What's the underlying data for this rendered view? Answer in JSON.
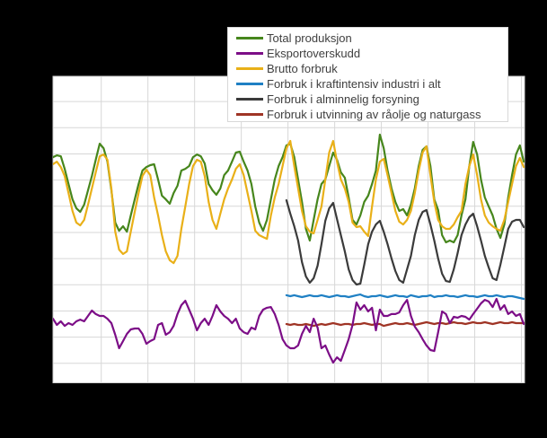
{
  "page": {
    "background": "#000000"
  },
  "plot": {
    "background": "#ffffff",
    "grid_color": "#d7d7d7",
    "border_color": "#d0d0d0"
  },
  "legend": {
    "background": "#ffffff",
    "border_color": "#d8d8d8",
    "text_color": "#3f3f3f"
  },
  "chart_data": {
    "type": "line",
    "title": "",
    "xlabel": "",
    "ylabel": "",
    "legend_position": "top",
    "grid": true,
    "x_axis": {
      "unit": "month-index",
      "xlim": [
        0,
        121.2
      ],
      "gridline_months": [
        12.4,
        24.4,
        36.4,
        48.4,
        60.4,
        72.4,
        84.4,
        96.4,
        108.4,
        120.4
      ],
      "tick_labels_visible": false
    },
    "y_axis": {
      "unit": "GWh (estimated; tick labels not visible in image)",
      "ylim": [
        -3490,
        19930
      ],
      "gridline_values": [
        18000,
        16000,
        14000,
        12000,
        10000,
        8000,
        6000,
        4000,
        2000,
        0,
        -2000
      ],
      "tick_labels_visible": false
    },
    "series": [
      {
        "name": "Total produksjon",
        "color": "#46861c",
        "start_month": 0,
        "values": [
          13750,
          13890,
          13820,
          12860,
          11700,
          10530,
          9840,
          9570,
          10120,
          11220,
          12310,
          13550,
          14780,
          14440,
          13410,
          11220,
          8750,
          8130,
          8470,
          8060,
          9300,
          10530,
          11700,
          12730,
          13000,
          13140,
          13210,
          12040,
          10810,
          10530,
          10190,
          11010,
          11560,
          12730,
          12860,
          13070,
          13750,
          13960,
          13820,
          13270,
          11700,
          11220,
          10880,
          11360,
          12380,
          12730,
          13410,
          14100,
          14170,
          13410,
          12730,
          11700,
          9980,
          8750,
          8130,
          8960,
          10530,
          12040,
          13070,
          13750,
          14650,
          14780,
          13750,
          12040,
          10330,
          8270,
          7380,
          8960,
          10530,
          11700,
          12040,
          13070,
          14100,
          13550,
          12590,
          12180,
          10670,
          8960,
          8610,
          9300,
          10330,
          10810,
          11700,
          12730,
          15470,
          14440,
          12730,
          11360,
          10330,
          9640,
          9780,
          9300,
          10120,
          11360,
          13070,
          14300,
          14580,
          13070,
          10530,
          9710,
          7790,
          7240,
          7380,
          7240,
          7790,
          9300,
          10530,
          13070,
          14920,
          13960,
          12040,
          10670,
          9980,
          9300,
          8270,
          7580,
          8610,
          10670,
          12380,
          13960,
          14650,
          13410
        ]
      },
      {
        "name": "Eksportoverskudd",
        "color": "#7c0e87",
        "start_month": 0,
        "values": [
          1410,
          930,
          1210,
          860,
          1070,
          930,
          1210,
          1340,
          1210,
          1620,
          2030,
          1760,
          1620,
          1620,
          1410,
          1070,
          180,
          -850,
          -300,
          250,
          590,
          660,
          660,
          250,
          -510,
          -300,
          -160,
          930,
          1070,
          180,
          380,
          860,
          1760,
          2440,
          2780,
          2100,
          1410,
          520,
          1070,
          1410,
          930,
          1620,
          2440,
          1960,
          1620,
          1410,
          1070,
          1410,
          660,
          380,
          250,
          730,
          590,
          1620,
          2100,
          2240,
          2300,
          1760,
          930,
          -160,
          -640,
          -850,
          -850,
          -640,
          250,
          860,
          380,
          1410,
          730,
          -850,
          -640,
          -1330,
          -1950,
          -1540,
          -1810,
          -990,
          -160,
          930,
          2650,
          2100,
          2440,
          1960,
          2240,
          520,
          2100,
          1620,
          1620,
          1760,
          1760,
          1890,
          2440,
          2850,
          1620,
          800,
          380,
          -160,
          -640,
          -990,
          -1060,
          380,
          1960,
          1760,
          1070,
          1550,
          1480,
          1620,
          1550,
          1340,
          1760,
          2170,
          2580,
          2850,
          2720,
          2300,
          2920,
          2100,
          2440,
          1760,
          1960,
          1620,
          1760,
          1000
        ]
      },
      {
        "name": "Brutto forbruk",
        "color": "#e9b018",
        "start_month": 0,
        "values": [
          13210,
          13410,
          13000,
          12310,
          11010,
          9640,
          8750,
          8540,
          8960,
          10120,
          11360,
          12590,
          13820,
          13960,
          13550,
          11360,
          8060,
          6690,
          6350,
          6550,
          8060,
          9570,
          11010,
          12310,
          12790,
          12380,
          10670,
          9300,
          7790,
          6550,
          5870,
          5660,
          6210,
          8270,
          9980,
          11700,
          13070,
          13550,
          13410,
          12310,
          10330,
          8960,
          8270,
          9430,
          10530,
          11360,
          12040,
          12860,
          13210,
          12380,
          11010,
          9640,
          8130,
          7790,
          7650,
          7510,
          9300,
          10670,
          11700,
          13070,
          14440,
          14990,
          13070,
          11360,
          9640,
          8470,
          8060,
          7930,
          8960,
          9980,
          12040,
          14100,
          14990,
          13410,
          12040,
          11360,
          10330,
          8750,
          8410,
          8470,
          8060,
          7720,
          9980,
          12040,
          13410,
          13620,
          12380,
          11010,
          9640,
          8820,
          8610,
          8960,
          9640,
          11010,
          12730,
          14100,
          14580,
          12380,
          10330,
          8960,
          8470,
          8270,
          8270,
          8610,
          9160,
          9640,
          11700,
          13070,
          13960,
          12380,
          10530,
          9300,
          8750,
          8470,
          8270,
          8130,
          8960,
          10330,
          11700,
          13070,
          13690,
          13000
        ]
      },
      {
        "name": "Forbruk i kraftintensiv industri i alt",
        "color": "#1f80c4",
        "start_month": 60,
        "values": [
          3200,
          3130,
          3200,
          3130,
          3060,
          3130,
          3200,
          3130,
          3130,
          3200,
          3130,
          3060,
          3130,
          3200,
          3130,
          3130,
          3060,
          3130,
          3200,
          3260,
          3130,
          3060,
          3130,
          3130,
          3200,
          3130,
          3060,
          3130,
          3200,
          3130,
          3130,
          3060,
          3200,
          3130,
          3060,
          3130,
          3130,
          3200,
          3060,
          3130,
          3130,
          3200,
          3130,
          3130,
          3060,
          3130,
          3200,
          3130,
          3130,
          3060,
          3130,
          3200,
          3130,
          3130,
          3200,
          3130,
          3060,
          3130,
          3130,
          3060,
          2990,
          2920
        ]
      },
      {
        "name": "Forbruk i alminnelig forsyning",
        "color": "#3b3b3b",
        "start_month": 60,
        "values": [
          10460,
          9430,
          8470,
          7380,
          5730,
          4630,
          4160,
          4500,
          5460,
          7100,
          8890,
          9840,
          10260,
          9020,
          7790,
          6550,
          5180,
          4360,
          4020,
          4090,
          5530,
          7100,
          8060,
          8610,
          8890,
          8060,
          7100,
          6010,
          5050,
          4360,
          4160,
          5180,
          6210,
          7790,
          8960,
          9570,
          9710,
          8610,
          7380,
          6010,
          4840,
          4290,
          4220,
          5180,
          6420,
          7790,
          8610,
          9160,
          9430,
          8470,
          7380,
          6210,
          5320,
          4500,
          4360,
          5530,
          6900,
          8270,
          8820,
          8960,
          8960,
          8410
        ]
      },
      {
        "name": "Forbruk i utvinning av råolje og naturgass",
        "color": "#9f3425",
        "start_month": 60,
        "values": [
          1000,
          930,
          1000,
          930,
          930,
          1000,
          930,
          860,
          930,
          1000,
          930,
          1000,
          1070,
          1000,
          930,
          1000,
          1000,
          930,
          1000,
          1000,
          1070,
          1000,
          930,
          1000,
          1000,
          860,
          930,
          1000,
          1070,
          1000,
          1000,
          1070,
          1000,
          930,
          1000,
          1070,
          1140,
          1070,
          1000,
          1070,
          1070,
          1000,
          1070,
          1140,
          1070,
          1070,
          1000,
          1070,
          1140,
          1070,
          1070,
          1140,
          1070,
          1000,
          1070,
          1140,
          1070,
          1070,
          1140,
          1070,
          1070,
          1070
        ]
      }
    ]
  }
}
